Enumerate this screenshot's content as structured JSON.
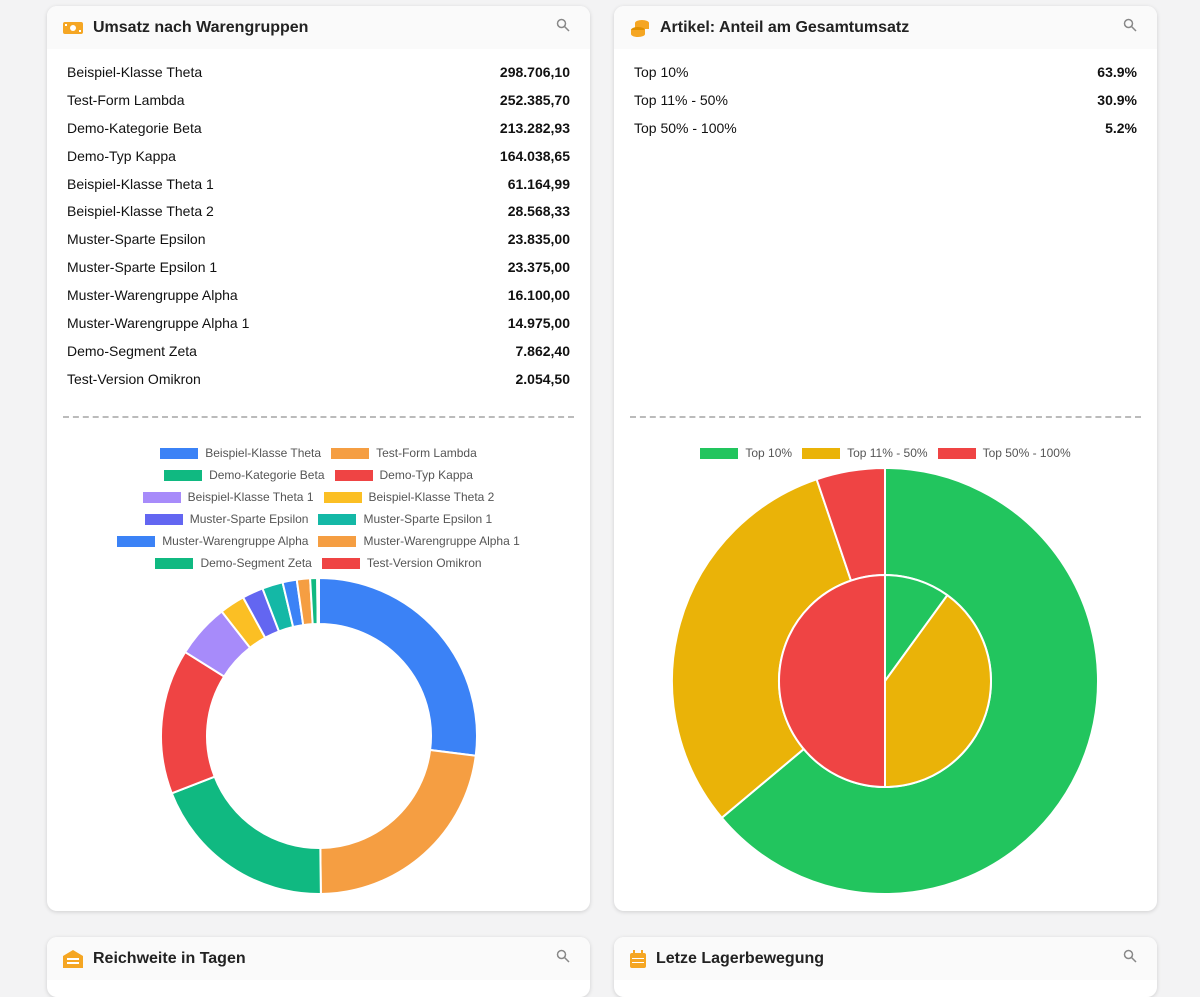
{
  "cards": {
    "umsatz": {
      "title": "Umsatz nach Warengruppen",
      "icon": "money-icon"
    },
    "artikel": {
      "title": "Artikel: Anteil am Gesamtumsatz",
      "icon": "coins-icon"
    },
    "reichweite": {
      "title": "Reichweite in Tagen",
      "icon": "warehouse-icon"
    },
    "lager": {
      "title": "Letze Lagerbewegung",
      "icon": "calendar-icon"
    }
  },
  "umsatz_rows": [
    {
      "label": "Beispiel-Klasse Theta",
      "value": "298.706,10"
    },
    {
      "label": "Test-Form Lambda",
      "value": "252.385,70"
    },
    {
      "label": "Demo-Kategorie Beta",
      "value": "213.282,93"
    },
    {
      "label": "Demo-Typ Kappa",
      "value": "164.038,65"
    },
    {
      "label": "Beispiel-Klasse Theta 1",
      "value": "61.164,99"
    },
    {
      "label": "Beispiel-Klasse Theta 2",
      "value": "28.568,33"
    },
    {
      "label": "Muster-Sparte Epsilon",
      "value": "23.835,00"
    },
    {
      "label": "Muster-Sparte Epsilon 1",
      "value": "23.375,00"
    },
    {
      "label": "Muster-Warengruppe Alpha",
      "value": "16.100,00"
    },
    {
      "label": "Muster-Warengruppe Alpha 1",
      "value": "14.975,00"
    },
    {
      "label": "Demo-Segment Zeta",
      "value": "7.862,40"
    },
    {
      "label": "Test-Version Omikron",
      "value": "2.054,50"
    }
  ],
  "artikel_rows": [
    {
      "label": "Top 10%",
      "value": "63.9%"
    },
    {
      "label": "Top 11% - 50%",
      "value": "30.9%"
    },
    {
      "label": "Top 50% - 100%",
      "value": "5.2%"
    }
  ],
  "chart_data": [
    {
      "type": "pie",
      "variant": "doughnut",
      "categories": [
        "Beispiel-Klasse Theta",
        "Test-Form Lambda",
        "Demo-Kategorie Beta",
        "Demo-Typ Kappa",
        "Beispiel-Klasse Theta 1",
        "Beispiel-Klasse Theta 2",
        "Muster-Sparte Epsilon",
        "Muster-Sparte Epsilon 1",
        "Muster-Warengruppe Alpha",
        "Muster-Warengruppe Alpha 1",
        "Demo-Segment Zeta",
        "Test-Version Omikron"
      ],
      "values": [
        298706.1,
        252385.7,
        213282.93,
        164038.65,
        61164.99,
        28568.33,
        23835.0,
        23375.0,
        16100.0,
        14975.0,
        7862.4,
        2054.5
      ],
      "colors": [
        "#3b82f6",
        "#f59e42",
        "#10b981",
        "#ef4444",
        "#a78bfa",
        "#fbbf24",
        "#6366f1",
        "#14b8a6",
        "#3b82f6",
        "#f59e42",
        "#10b981",
        "#ef4444"
      ],
      "legend": "top"
    },
    {
      "type": "pie",
      "variant": "nested",
      "categories": [
        "Top 10%",
        "Top 11% - 50%",
        "Top 50% - 100%"
      ],
      "series": [
        {
          "name": "outer",
          "values": [
            63.9,
            30.9,
            5.2
          ]
        },
        {
          "name": "inner",
          "values": [
            10,
            40,
            50
          ]
        }
      ],
      "colors": [
        "#22c55e",
        "#eab308",
        "#ef4444"
      ],
      "legend": "top"
    }
  ]
}
